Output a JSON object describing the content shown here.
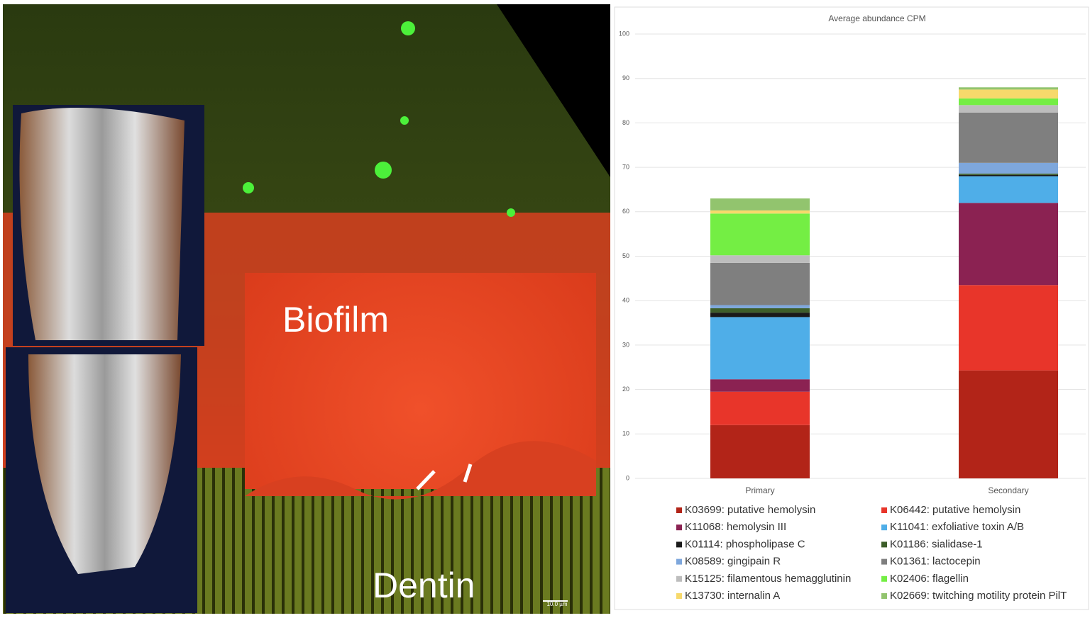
{
  "image": {
    "labels": [
      "Biofilm",
      "Dentin"
    ],
    "scale_bar": "10.0 µm"
  },
  "chart_data": {
    "type": "stacked-bar",
    "title": "Average abundance CPM",
    "categories": [
      "Primary",
      "Secondary"
    ],
    "ylim": [
      0,
      100
    ],
    "yticks": [
      0,
      10,
      20,
      30,
      40,
      50,
      60,
      70,
      80,
      90,
      100
    ],
    "grid": true,
    "series": [
      {
        "name": "K03699: putative hemolysin",
        "color": "#b22418",
        "values": [
          12,
          24.3
        ]
      },
      {
        "name": "K06442: putative hemolysin",
        "color": "#e8352a",
        "values": [
          7.5,
          19.2
        ]
      },
      {
        "name": "K11068: hemolysin III",
        "color": "#8b2252",
        "values": [
          2.8,
          18.5
        ]
      },
      {
        "name": "K11041: exfoliative toxin A/B",
        "color": "#4faee8",
        "values": [
          14,
          6
        ]
      },
      {
        "name": "K01114: phospholipase C",
        "color": "#1a1a1a",
        "values": [
          1,
          0.3
        ]
      },
      {
        "name": "K01186: sialidase-1",
        "color": "#3d5e2a",
        "values": [
          1,
          0.3
        ]
      },
      {
        "name": "K08589: gingipain R",
        "color": "#7ea7dc",
        "values": [
          0.7,
          2.4
        ]
      },
      {
        "name": "K01361: lactocepin",
        "color": "#7f7f7f",
        "values": [
          9.5,
          11.3
        ]
      },
      {
        "name": "K15125: filamentous hemagglutinin",
        "color": "#bdbdbd",
        "values": [
          1.7,
          1.7
        ]
      },
      {
        "name": "K02406: flagellin",
        "color": "#74ee44",
        "values": [
          9.4,
          1.5
        ]
      },
      {
        "name": "K13730: internalin A",
        "color": "#f7d96b",
        "values": [
          0.7,
          2
        ]
      },
      {
        "name": "K02669: twitching motility protein PilT",
        "color": "#92c46e",
        "values": [
          2.7,
          0.5
        ]
      }
    ]
  }
}
